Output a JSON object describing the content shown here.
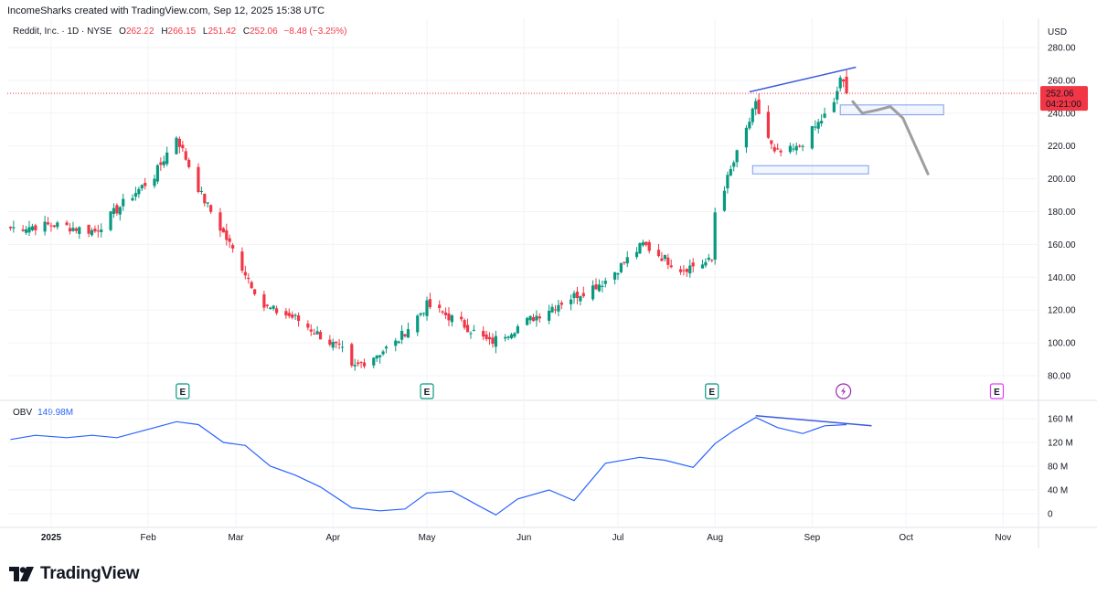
{
  "header": {
    "watermark": "IncomeSharks created with TradingView.com, Sep 12, 2025 15:38 UTC"
  },
  "legend": {
    "symbol": "Reddit, Inc. · 1D · NYSE",
    "o_label": "O",
    "o": "262.22",
    "h_label": "H",
    "h": "266.15",
    "l_label": "L",
    "l": "251.42",
    "c_label": "C",
    "c": "252.06",
    "change": "−8.48 (−3.25%)"
  },
  "price_axis": {
    "currency": "USD",
    "last_price": "252.06",
    "countdown": "04:21:00"
  },
  "obv_legend": {
    "name": "OBV",
    "value": "149.98M"
  },
  "branding": {
    "logo_text": "TradingView"
  },
  "colors": {
    "up": "#089981",
    "down": "#f23645",
    "obv": "#2962ff",
    "drawing": "#3b5bdb",
    "projection": "#9e9e9e",
    "earnings": "#089981",
    "dividend": "#9c27b0",
    "future_earnings": "#e040fb"
  },
  "chart_data": [
    {
      "type": "candlestick",
      "title": "Reddit, Inc. · 1D · NYSE",
      "ylabel": "USD",
      "ylim": [
        70,
        290
      ],
      "y_ticks": [
        80,
        100,
        120,
        140,
        160,
        180,
        200,
        220,
        240,
        260,
        280
      ],
      "y_tick_labels": [
        "80.00",
        "100.00",
        "120.00",
        "140.00",
        "160.00",
        "180.00",
        "200.00",
        "220.00",
        "240.00",
        "260.00",
        "280.00"
      ],
      "x_tick_labels": [
        "2025",
        "Feb",
        "Mar",
        "Apr",
        "May",
        "Jun",
        "Jul",
        "Aug",
        "Sep",
        "Oct",
        "Nov"
      ],
      "x_tick_dates": [
        "2025-01-01",
        "2025-02-01",
        "2025-03-01",
        "2025-04-01",
        "2025-05-01",
        "2025-06-01",
        "2025-07-01",
        "2025-08-01",
        "2025-09-01",
        "2025-10-01",
        "2025-11-01"
      ],
      "x_range": [
        "2024-12-18",
        "2025-11-12"
      ],
      "grid": true,
      "approx_closes": [
        {
          "date": "2024-12-19",
          "close": 170
        },
        {
          "date": "2025-01-02",
          "close": 172
        },
        {
          "date": "2025-01-15",
          "close": 168
        },
        {
          "date": "2025-01-24",
          "close": 185
        },
        {
          "date": "2025-02-03",
          "close": 202
        },
        {
          "date": "2025-02-10",
          "close": 226
        },
        {
          "date": "2025-02-18",
          "close": 190
        },
        {
          "date": "2025-02-27",
          "close": 160
        },
        {
          "date": "2025-03-10",
          "close": 122
        },
        {
          "date": "2025-03-20",
          "close": 115
        },
        {
          "date": "2025-04-04",
          "close": 95
        },
        {
          "date": "2025-04-07",
          "close": 84
        },
        {
          "date": "2025-04-21",
          "close": 100
        },
        {
          "date": "2025-05-01",
          "close": 123
        },
        {
          "date": "2025-05-12",
          "close": 112
        },
        {
          "date": "2025-05-21",
          "close": 100
        },
        {
          "date": "2025-06-10",
          "close": 122
        },
        {
          "date": "2025-06-27",
          "close": 138
        },
        {
          "date": "2025-07-09",
          "close": 160
        },
        {
          "date": "2025-07-21",
          "close": 145
        },
        {
          "date": "2025-07-31",
          "close": 150
        },
        {
          "date": "2025-08-01",
          "close": 180
        },
        {
          "date": "2025-08-07",
          "close": 210
        },
        {
          "date": "2025-08-14",
          "close": 245
        },
        {
          "date": "2025-08-20",
          "close": 215
        },
        {
          "date": "2025-08-27",
          "close": 218
        },
        {
          "date": "2025-09-08",
          "close": 245
        },
        {
          "date": "2025-09-10",
          "close": 262
        },
        {
          "date": "2025-09-12",
          "close": 252
        }
      ],
      "last_ohlc": {
        "open": 262.22,
        "high": 266.15,
        "low": 251.42,
        "close": 252.06
      },
      "annotations": [
        {
          "type": "trendline",
          "from": {
            "date": "2025-08-12",
            "value": 253
          },
          "to": {
            "date": "2025-09-15",
            "value": 268
          }
        },
        {
          "type": "rectangle",
          "x": [
            "2025-09-10",
            "2025-10-13"
          ],
          "y": [
            239,
            245
          ]
        },
        {
          "type": "rectangle",
          "x": [
            "2025-08-13",
            "2025-09-19"
          ],
          "y": [
            203,
            208
          ]
        },
        {
          "type": "projection_path",
          "points": [
            {
              "date": "2025-09-14",
              "value": 247
            },
            {
              "date": "2025-09-17",
              "value": 240
            },
            {
              "date": "2025-09-22",
              "value": 242
            },
            {
              "date": "2025-09-26",
              "value": 244
            },
            {
              "date": "2025-09-30",
              "value": 237
            },
            {
              "date": "2025-10-04",
              "value": 220
            },
            {
              "date": "2025-10-08",
              "value": 203
            }
          ]
        },
        {
          "type": "horizontal_price_line",
          "value": 252.06
        }
      ],
      "events": [
        {
          "label": "E",
          "date": "2025-02-12"
        },
        {
          "label": "E",
          "date": "2025-05-01"
        },
        {
          "label": "E",
          "date": "2025-07-31"
        },
        {
          "label": "dividend",
          "date": "2025-09-11"
        },
        {
          "label": "E",
          "date": "2025-10-30",
          "future": true
        }
      ]
    },
    {
      "type": "line",
      "title": "OBV",
      "ylim": [
        -10,
        175
      ],
      "y_ticks": [
        0,
        40,
        80,
        120,
        160
      ],
      "y_tick_labels": [
        "0",
        "40 M",
        "80 M",
        "120 M",
        "160 M"
      ],
      "series": [
        {
          "name": "OBV",
          "points": [
            {
              "date": "2024-12-19",
              "value": 125
            },
            {
              "date": "2024-12-27",
              "value": 132
            },
            {
              "date": "2025-01-06",
              "value": 128
            },
            {
              "date": "2025-01-14",
              "value": 132
            },
            {
              "date": "2025-01-22",
              "value": 128
            },
            {
              "date": "2025-02-03",
              "value": 145
            },
            {
              "date": "2025-02-10",
              "value": 155
            },
            {
              "date": "2025-02-17",
              "value": 150
            },
            {
              "date": "2025-02-25",
              "value": 120
            },
            {
              "date": "2025-03-04",
              "value": 115
            },
            {
              "date": "2025-03-12",
              "value": 80
            },
            {
              "date": "2025-03-20",
              "value": 65
            },
            {
              "date": "2025-03-28",
              "value": 45
            },
            {
              "date": "2025-04-07",
              "value": 10
            },
            {
              "date": "2025-04-16",
              "value": 5
            },
            {
              "date": "2025-04-24",
              "value": 8
            },
            {
              "date": "2025-05-01",
              "value": 35
            },
            {
              "date": "2025-05-09",
              "value": 38
            },
            {
              "date": "2025-05-17",
              "value": 15
            },
            {
              "date": "2025-05-23",
              "value": -2
            },
            {
              "date": "2025-05-30",
              "value": 25
            },
            {
              "date": "2025-06-09",
              "value": 40
            },
            {
              "date": "2025-06-17",
              "value": 22
            },
            {
              "date": "2025-06-27",
              "value": 85
            },
            {
              "date": "2025-07-08",
              "value": 95
            },
            {
              "date": "2025-07-16",
              "value": 90
            },
            {
              "date": "2025-07-25",
              "value": 78
            },
            {
              "date": "2025-08-01",
              "value": 118
            },
            {
              "date": "2025-08-07",
              "value": 140
            },
            {
              "date": "2025-08-14",
              "value": 162
            },
            {
              "date": "2025-08-21",
              "value": 145
            },
            {
              "date": "2025-08-29",
              "value": 135
            },
            {
              "date": "2025-09-05",
              "value": 148
            },
            {
              "date": "2025-09-12",
              "value": 150
            }
          ]
        }
      ],
      "annotations": [
        {
          "type": "trendline",
          "from": {
            "date": "2025-08-14",
            "value": 165
          },
          "to": {
            "date": "2025-09-20",
            "value": 148
          }
        }
      ]
    }
  ]
}
